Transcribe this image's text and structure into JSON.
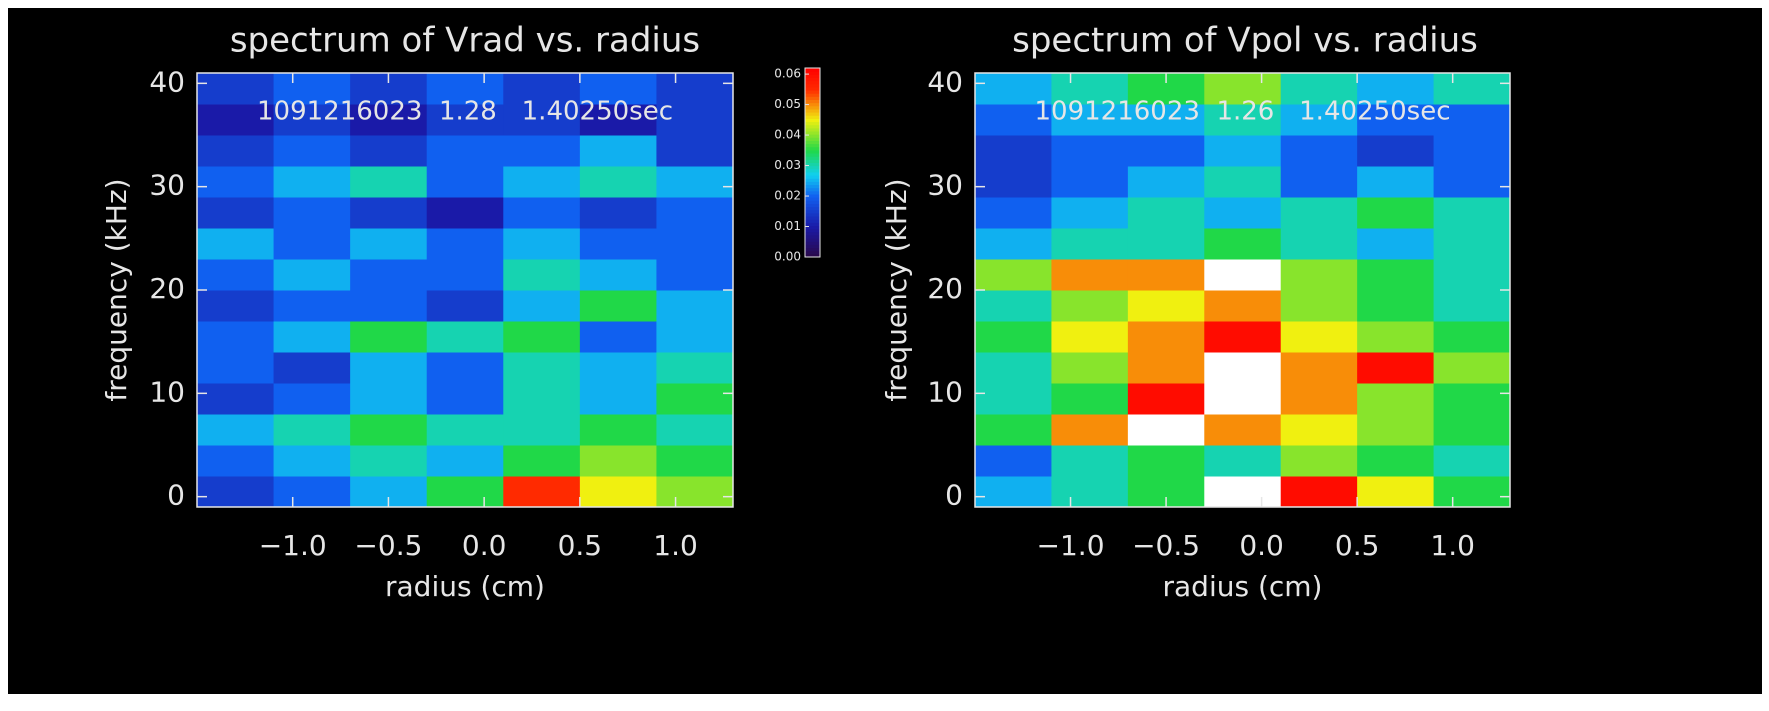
{
  "chart_data": [
    {
      "type": "heatmap",
      "title": "spectrum of Vrad vs. radius",
      "annotation": "1091216023  1.28   1.40250sec",
      "x_label": "radius (cm)",
      "y_label": "frequency (kHz)",
      "xlim": [
        -1.5,
        1.3
      ],
      "ylim": [
        -1,
        41
      ],
      "xticks": [
        {
          "value": -1,
          "label": "−1.0"
        },
        {
          "value": -0.5,
          "label": "−0.5"
        },
        {
          "value": 0,
          "label": "0.0"
        },
        0.5,
        {
          "value": 1,
          "label": "1.0"
        }
      ],
      "yticks": [
        0,
        10,
        20,
        30,
        40
      ],
      "x": [
        -1.3,
        -0.9,
        -0.5,
        -0.1,
        0.3,
        0.7,
        1.1
      ],
      "y": [
        0.5,
        3.5,
        6.5,
        9.5,
        12.5,
        15.5,
        18.5,
        21.5,
        24.5,
        27.5,
        30.5,
        33.5,
        36.5,
        39.5
      ],
      "z": [
        [
          0.015,
          0.02,
          0.025,
          0.035,
          0.055,
          0.045,
          0.04
        ],
        [
          0.02,
          0.025,
          0.03,
          0.025,
          0.035,
          0.04,
          0.035
        ],
        [
          0.025,
          0.03,
          0.035,
          0.03,
          0.03,
          0.035,
          0.03
        ],
        [
          0.015,
          0.02,
          0.025,
          0.02,
          0.03,
          0.025,
          0.035
        ],
        [
          0.02,
          0.015,
          0.025,
          0.02,
          0.03,
          0.025,
          0.03
        ],
        [
          0.02,
          0.025,
          0.035,
          0.03,
          0.035,
          0.02,
          0.025
        ],
        [
          0.015,
          0.02,
          0.02,
          0.015,
          0.025,
          0.035,
          0.025
        ],
        [
          0.02,
          0.025,
          0.02,
          0.02,
          0.03,
          0.025,
          0.02
        ],
        [
          0.025,
          0.02,
          0.025,
          0.02,
          0.025,
          0.02,
          0.02
        ],
        [
          0.015,
          0.02,
          0.015,
          0.01,
          0.02,
          0.015,
          0.02
        ],
        [
          0.02,
          0.025,
          0.03,
          0.02,
          0.025,
          0.03,
          0.025
        ],
        [
          0.015,
          0.02,
          0.015,
          0.02,
          0.02,
          0.025,
          0.015
        ],
        [
          0.01,
          0.015,
          0.01,
          0.015,
          0.015,
          0.01,
          0.015
        ],
        [
          0.015,
          0.02,
          0.015,
          0.02,
          0.015,
          0.02,
          0.015
        ]
      ],
      "colorscale": [
        [
          0,
          "#2a0848"
        ],
        [
          0.01,
          "#1a1aa8"
        ],
        [
          0.02,
          "#1060f0"
        ],
        [
          0.027,
          "#10d0f0"
        ],
        [
          0.035,
          "#20d848"
        ],
        [
          0.045,
          "#f0f010"
        ],
        [
          0.055,
          "#ff2a00"
        ],
        [
          0.062,
          "#ff0000"
        ]
      ],
      "over_color": "#ffffff",
      "colorbar": {
        "zlim": [
          0,
          0.062
        ],
        "zticks": [
          {
            "value": 0,
            "label": "0.00"
          },
          {
            "value": 0.01,
            "label": "0.01"
          },
          {
            "value": 0.02,
            "label": "0.02"
          },
          {
            "value": 0.03,
            "label": "0.03"
          },
          {
            "value": 0.04,
            "label": "0.04"
          },
          {
            "value": 0.05,
            "label": "0.05"
          },
          {
            "value": 0.06,
            "label": "0.06"
          }
        ]
      }
    },
    {
      "type": "heatmap",
      "title": "spectrum of Vpol vs. radius",
      "annotation": "1091216023  1.26   1.40250sec",
      "x_label": "radius (cm)",
      "y_label": "frequency (kHz)",
      "xlim": [
        -1.5,
        1.3
      ],
      "ylim": [
        -1,
        41
      ],
      "xticks": [
        {
          "value": -1,
          "label": "−1.0"
        },
        {
          "value": -0.5,
          "label": "−0.5"
        },
        {
          "value": 0,
          "label": "0.0"
        },
        0.5,
        {
          "value": 1,
          "label": "1.0"
        }
      ],
      "yticks": [
        0,
        10,
        20,
        30,
        40
      ],
      "x": [
        -1.3,
        -0.9,
        -0.5,
        -0.1,
        0.3,
        0.7,
        1.1
      ],
      "y": [
        0.5,
        3.5,
        6.5,
        9.5,
        12.5,
        15.5,
        18.5,
        21.5,
        24.5,
        27.5,
        30.5,
        33.5,
        36.5,
        39.5
      ],
      "z": [
        [
          0.025,
          0.03,
          0.035,
          0.065,
          0.06,
          0.045,
          0.035
        ],
        [
          0.02,
          0.03,
          0.035,
          0.03,
          0.04,
          0.035,
          0.03
        ],
        [
          0.035,
          0.05,
          0.07,
          0.05,
          0.045,
          0.04,
          0.035
        ],
        [
          0.03,
          0.035,
          0.06,
          0.065,
          0.05,
          0.04,
          0.035
        ],
        [
          0.03,
          0.04,
          0.05,
          0.065,
          0.05,
          0.06,
          0.04
        ],
        [
          0.035,
          0.045,
          0.05,
          0.06,
          0.045,
          0.04,
          0.035
        ],
        [
          0.03,
          0.04,
          0.045,
          0.05,
          0.04,
          0.035,
          0.03
        ],
        [
          0.04,
          0.05,
          0.05,
          0.065,
          0.04,
          0.035,
          0.03
        ],
        [
          0.025,
          0.03,
          0.03,
          0.035,
          0.03,
          0.025,
          0.03
        ],
        [
          0.02,
          0.025,
          0.03,
          0.025,
          0.03,
          0.035,
          0.03
        ],
        [
          0.015,
          0.02,
          0.025,
          0.03,
          0.02,
          0.025,
          0.02
        ],
        [
          0.015,
          0.02,
          0.02,
          0.025,
          0.02,
          0.015,
          0.02
        ],
        [
          0.02,
          0.025,
          0.025,
          0.03,
          0.025,
          0.02,
          0.02
        ],
        [
          0.025,
          0.03,
          0.035,
          0.04,
          0.03,
          0.025,
          0.03
        ]
      ],
      "colorscale": [
        [
          0,
          "#2a0848"
        ],
        [
          0.01,
          "#1a1aa8"
        ],
        [
          0.02,
          "#1060f0"
        ],
        [
          0.027,
          "#10d0f0"
        ],
        [
          0.035,
          "#20d848"
        ],
        [
          0.045,
          "#f0f010"
        ],
        [
          0.055,
          "#ff2a00"
        ],
        [
          0.062,
          "#ff0000"
        ]
      ],
      "over_color": "#ffffff"
    }
  ]
}
